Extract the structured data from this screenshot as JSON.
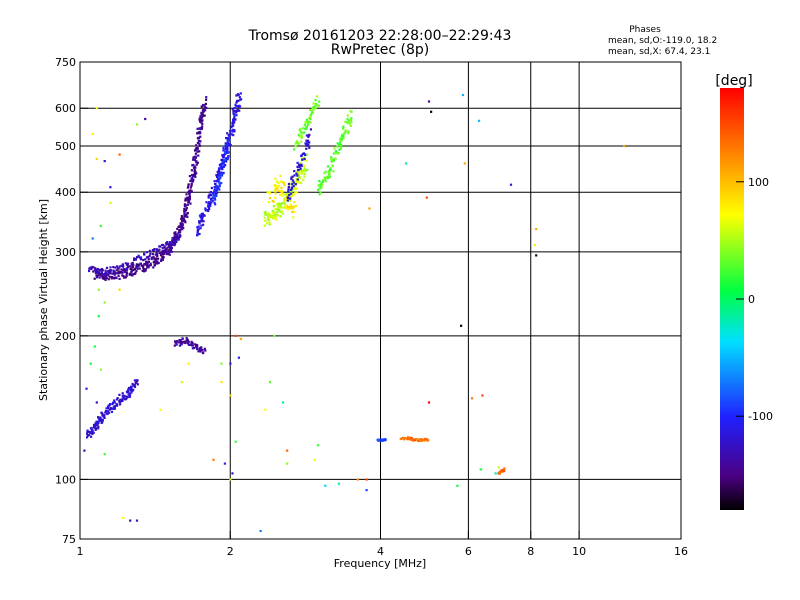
{
  "chart_data": {
    "type": "scatter",
    "title": "Tromsø 20161203 22:28:00–22:29:43",
    "subtitle": "RwPretec (8p)",
    "xlabel": "Frequency [MHz]",
    "ylabel": "Stationary phase Virtual Height [km]",
    "x_scale": "log",
    "y_scale": "log",
    "xlim": [
      1,
      16
    ],
    "ylim": [
      75,
      750
    ],
    "x_ticks": [
      1,
      2,
      4,
      6,
      8,
      10,
      16
    ],
    "y_ticks": [
      75,
      100,
      200,
      300,
      400,
      500,
      600,
      750
    ],
    "x_gridlines": [
      2,
      4,
      6,
      8,
      10
    ],
    "y_gridlines": [
      100,
      200,
      300,
      400,
      500,
      600
    ],
    "colorbar": {
      "label": "[deg]",
      "min": -180,
      "max": 180,
      "ticks": [
        100,
        0,
        -100
      ],
      "colormap": "rainbow"
    },
    "stats": {
      "heading": "Phases",
      "o_line": "mean, sd,O:-119.0, 18.2",
      "x_line": "mean, sd,X:  67.4, 23.1"
    },
    "groups": [
      {
        "kind": "curve",
        "f": [
          1.08,
          1.15,
          1.25,
          1.35,
          1.45,
          1.52,
          1.58,
          1.62,
          1.66,
          1.7,
          1.74,
          1.78
        ],
        "h": [
          270,
          268,
          272,
          280,
          292,
          308,
          330,
          360,
          400,
          460,
          540,
          630
        ],
        "spread": 0.035,
        "reps": 12,
        "phase": -145
      },
      {
        "kind": "curve",
        "f": [
          1.05,
          1.1,
          1.2,
          1.3,
          1.4,
          1.5,
          1.6
        ],
        "h": [
          278,
          272,
          276,
          288,
          300,
          312,
          325
        ],
        "spread": 0.025,
        "reps": 6,
        "phase": -130
      },
      {
        "kind": "curve",
        "f": [
          1.72,
          1.78,
          1.85,
          1.9,
          1.95,
          2.0,
          2.05,
          2.08
        ],
        "h": [
          330,
          360,
          400,
          440,
          480,
          530,
          590,
          640
        ],
        "spread": 0.04,
        "reps": 9,
        "phase": -115
      },
      {
        "kind": "curve",
        "f": [
          1.85,
          1.9,
          1.95,
          2.0
        ],
        "h": [
          380,
          420,
          470,
          520
        ],
        "spread": 0.03,
        "reps": 6,
        "phase": -95
      },
      {
        "kind": "curve",
        "f": [
          2.35,
          2.45,
          2.55,
          2.65,
          2.75,
          2.85
        ],
        "h": [
          350,
          360,
          375,
          400,
          430,
          470
        ],
        "spread": 0.05,
        "reps": 8,
        "phase": 55
      },
      {
        "kind": "curve",
        "f": [
          2.4,
          2.5,
          2.6,
          2.7
        ],
        "h": [
          390,
          420,
          380,
          360
        ],
        "spread": 0.05,
        "reps": 5,
        "phase": 80
      },
      {
        "kind": "curve",
        "f": [
          2.6,
          2.7,
          2.8,
          2.9
        ],
        "h": [
          390,
          430,
          480,
          540
        ],
        "spread": 0.04,
        "reps": 5,
        "phase": -120
      },
      {
        "kind": "curve",
        "f": [
          2.7,
          2.8,
          2.9,
          3.0
        ],
        "h": [
          500,
          540,
          580,
          630
        ],
        "spread": 0.03,
        "reps": 4,
        "phase": 35
      },
      {
        "kind": "curve",
        "f": [
          3.0,
          3.1,
          3.2,
          3.3,
          3.4,
          3.5
        ],
        "h": [
          400,
          430,
          460,
          500,
          540,
          580
        ],
        "spread": 0.04,
        "reps": 6,
        "phase": 30
      },
      {
        "kind": "curve",
        "f": [
          1.04,
          1.08,
          1.12,
          1.18,
          1.25,
          1.3
        ],
        "h": [
          125,
          130,
          138,
          145,
          152,
          160
        ],
        "spread": 0.03,
        "reps": 8,
        "phase": -120
      },
      {
        "kind": "curve",
        "f": [
          1.55,
          1.62,
          1.7,
          1.78
        ],
        "h": [
          192,
          196,
          190,
          185
        ],
        "spread": 0.02,
        "reps": 5,
        "phase": -140
      },
      {
        "kind": "curve",
        "f": [
          3.95,
          4.0,
          4.05,
          4.1
        ],
        "h": [
          121,
          121,
          121,
          121
        ],
        "spread": 0.005,
        "reps": 3,
        "phase": -85
      },
      {
        "kind": "curve",
        "f": [
          4.4,
          4.55,
          4.7,
          4.85,
          5.0
        ],
        "h": [
          122,
          122,
          121,
          121,
          121
        ],
        "spread": 0.008,
        "reps": 3,
        "phase": 135
      },
      {
        "kind": "curve",
        "f": [
          6.9,
          7.0,
          7.1
        ],
        "h": [
          103,
          104,
          105
        ],
        "spread": 0.01,
        "reps": 2,
        "phase": 140
      }
    ],
    "scatter_points": [
      [
        1.08,
        600,
        70
      ],
      [
        1.06,
        530,
        80
      ],
      [
        1.12,
        465,
        -120
      ],
      [
        1.08,
        470,
        90
      ],
      [
        1.2,
        480,
        140
      ],
      [
        1.35,
        570,
        -140
      ],
      [
        1.3,
        555,
        40
      ],
      [
        1.15,
        410,
        -110
      ],
      [
        1.15,
        380,
        60
      ],
      [
        1.1,
        340,
        20
      ],
      [
        1.06,
        320,
        -70
      ],
      [
        1.09,
        250,
        40
      ],
      [
        1.12,
        235,
        40
      ],
      [
        1.09,
        220,
        10
      ],
      [
        1.2,
        250,
        90
      ],
      [
        1.07,
        190,
        10
      ],
      [
        1.05,
        175,
        10
      ],
      [
        1.1,
        170,
        40
      ],
      [
        1.03,
        155,
        -110
      ],
      [
        1.08,
        145,
        -130
      ],
      [
        1.02,
        115,
        -130
      ],
      [
        1.12,
        113,
        20
      ],
      [
        1.22,
        83,
        70
      ],
      [
        1.26,
        82,
        -140
      ],
      [
        1.3,
        82,
        -120
      ],
      [
        1.45,
        140,
        70
      ],
      [
        1.6,
        160,
        60
      ],
      [
        1.65,
        175,
        80
      ],
      [
        1.92,
        175,
        40
      ],
      [
        2.0,
        175,
        -100
      ],
      [
        2.08,
        180,
        -100
      ],
      [
        1.92,
        160,
        80
      ],
      [
        2.0,
        150,
        90
      ],
      [
        2.05,
        200,
        150
      ],
      [
        2.1,
        197,
        110
      ],
      [
        1.85,
        110,
        130
      ],
      [
        1.95,
        108,
        -100
      ],
      [
        2.0,
        100,
        60
      ],
      [
        2.02,
        103,
        -120
      ],
      [
        2.05,
        120,
        20
      ],
      [
        2.3,
        78,
        -70
      ],
      [
        2.35,
        140,
        70
      ],
      [
        2.4,
        160,
        30
      ],
      [
        2.45,
        200,
        40
      ],
      [
        2.55,
        145,
        -10
      ],
      [
        2.6,
        115,
        140
      ],
      [
        2.6,
        108,
        40
      ],
      [
        2.95,
        110,
        70
      ],
      [
        3.0,
        118,
        20
      ],
      [
        3.1,
        97,
        -40
      ],
      [
        3.3,
        98,
        -20
      ],
      [
        3.6,
        100,
        120
      ],
      [
        3.75,
        100,
        150
      ],
      [
        3.8,
        370,
        110
      ],
      [
        4.5,
        460,
        -20
      ],
      [
        5.0,
        620,
        -140
      ],
      [
        5.05,
        590,
        -180
      ],
      [
        5.85,
        640,
        -50
      ],
      [
        5.9,
        460,
        110
      ],
      [
        5.8,
        210,
        -180
      ],
      [
        5.7,
        97,
        10
      ],
      [
        6.3,
        565,
        -50
      ],
      [
        6.4,
        150,
        150
      ],
      [
        6.35,
        105,
        10
      ],
      [
        6.1,
        148,
        130
      ],
      [
        7.3,
        415,
        -120
      ],
      [
        8.2,
        335,
        110
      ],
      [
        8.15,
        310,
        80
      ],
      [
        8.2,
        295,
        -170
      ],
      [
        5.0,
        145,
        180
      ],
      [
        4.95,
        390,
        150
      ],
      [
        12.3,
        500,
        110
      ],
      [
        3.75,
        95,
        -90
      ],
      [
        6.9,
        106,
        60
      ],
      [
        6.8,
        103,
        -20
      ]
    ]
  }
}
